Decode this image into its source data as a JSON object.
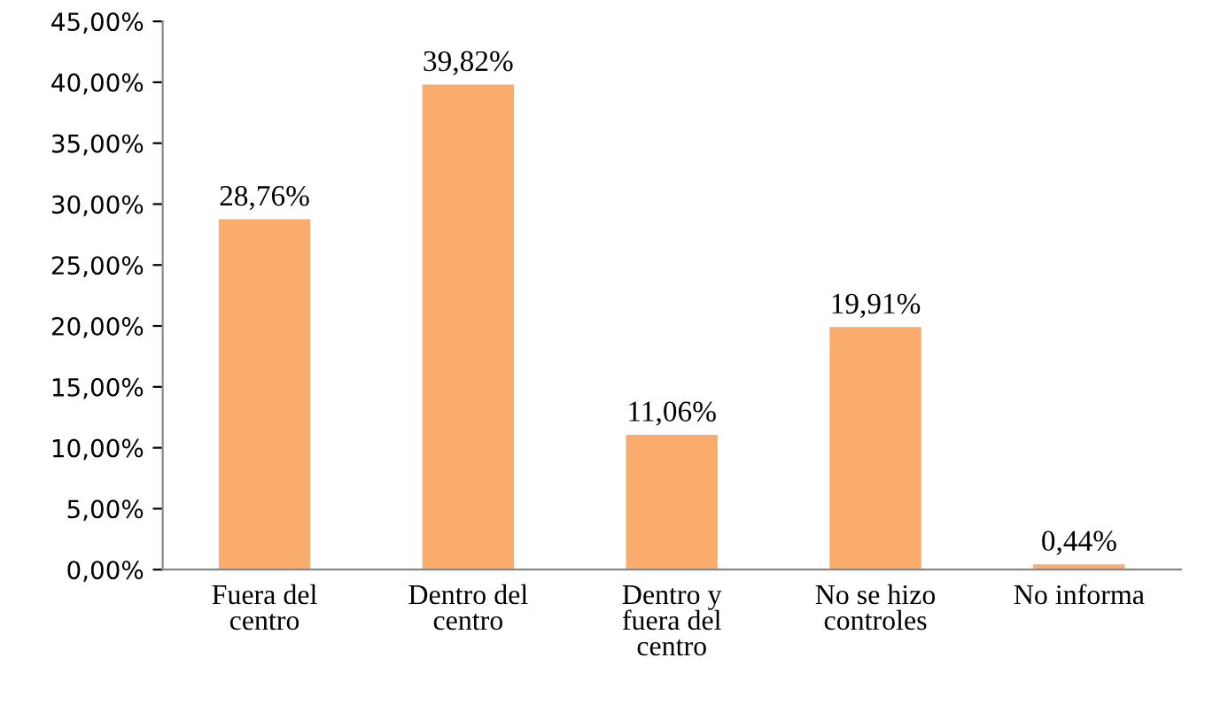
{
  "chart_data": {
    "type": "bar",
    "categories": [
      "Fuera del\ncentro",
      "Dentro del\ncentro",
      "Dentro y\nfuera del\ncentro",
      "No se hizo\ncontroles",
      "No informa"
    ],
    "values": [
      28.76,
      39.82,
      11.06,
      19.91,
      0.44
    ],
    "value_labels": [
      "28,76%",
      "39,82%",
      "11,06%",
      "19,91%",
      "0,44%"
    ],
    "color": "#f9ac6b",
    "ylim": [
      0,
      45
    ],
    "yticks": [
      {
        "value": 0,
        "label": "0,00%"
      },
      {
        "value": 5,
        "label": "5,00%"
      },
      {
        "value": 10,
        "label": "10,00%"
      },
      {
        "value": 15,
        "label": "15,00%"
      },
      {
        "value": 20,
        "label": "20,00%"
      },
      {
        "value": 25,
        "label": "25,00%"
      },
      {
        "value": 30,
        "label": "30,00%"
      },
      {
        "value": 35,
        "label": "35,00%"
      },
      {
        "value": 40,
        "label": "40,00%"
      },
      {
        "value": 45,
        "label": "45,00%"
      }
    ],
    "grid": false,
    "legend": false
  }
}
